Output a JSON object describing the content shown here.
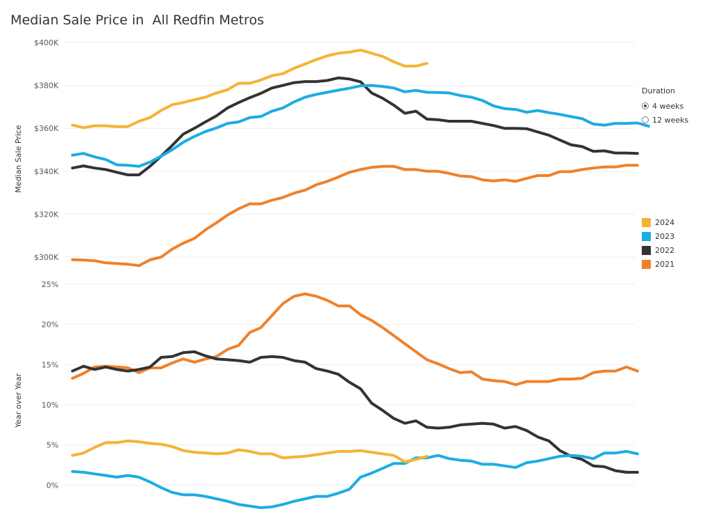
{
  "title": "Median Sale Price in  All Redfin Metros",
  "duration_filter": {
    "title": "Duration",
    "options": [
      {
        "label": "4 weeks",
        "checked": true
      },
      {
        "label": "12 weeks",
        "checked": false
      }
    ]
  },
  "chart_data": [
    {
      "type": "line",
      "ylabel": "Median Sale Price",
      "ylim": [
        300000,
        400000
      ],
      "yticks": [
        300000,
        320000,
        340000,
        360000,
        380000,
        400000
      ],
      "ytick_labels": [
        "$300K",
        "$320K",
        "$340K",
        "$360K",
        "$380K",
        "$400K"
      ],
      "grid": true,
      "legend_position": "right",
      "series": [
        {
          "name": "2024",
          "color": "#F5B335",
          "values": [
            361.5,
            360.3,
            361.2,
            361.2,
            360.8,
            360.8,
            363.3,
            365.0,
            368.3,
            371.0,
            372.0,
            373.3,
            374.5,
            376.5,
            378.0,
            381.0,
            381.0,
            382.5,
            384.5,
            385.5,
            388.0,
            390.0,
            392.0,
            393.8,
            395.0,
            395.5,
            396.5,
            395.0,
            393.5,
            391.0,
            389.0,
            389.0,
            390.3
          ]
        },
        {
          "name": "2023",
          "color": "#1BADE3",
          "values": [
            347.5,
            348.3,
            346.7,
            345.5,
            343.0,
            342.8,
            342.3,
            344.3,
            347.0,
            350.0,
            353.5,
            356.2,
            358.5,
            360.2,
            362.3,
            363.0,
            365.0,
            365.5,
            368.0,
            369.5,
            372.3,
            374.5,
            375.8,
            376.8,
            377.8,
            378.7,
            379.8,
            380.0,
            379.5,
            378.8,
            377.0,
            377.7,
            376.8,
            376.7,
            376.5,
            375.3,
            374.5,
            373.0,
            370.5,
            369.2,
            368.8,
            367.5,
            368.3,
            367.3,
            366.5,
            365.5,
            364.5,
            362.0,
            361.5,
            362.3,
            362.3,
            362.5,
            361.0
          ]
        },
        {
          "name": "2022",
          "color": "#333333",
          "values": [
            341.5,
            342.5,
            341.5,
            340.8,
            339.5,
            338.3,
            338.3,
            342.3,
            347.0,
            352.0,
            357.3,
            360.0,
            363.0,
            365.8,
            369.5,
            372.0,
            374.3,
            376.3,
            378.8,
            380.0,
            381.3,
            381.8,
            381.8,
            382.3,
            383.5,
            383.0,
            381.7,
            376.5,
            374.0,
            370.8,
            367.0,
            368.0,
            364.3,
            364.0,
            363.3,
            363.3,
            363.3,
            362.3,
            361.3,
            360.0,
            360.0,
            359.8,
            358.3,
            356.8,
            354.5,
            352.3,
            351.5,
            349.3,
            349.5,
            348.5,
            348.5,
            348.3
          ]
        },
        {
          "name": "2021",
          "color": "#F0812A",
          "values": [
            298.8,
            298.6,
            298.3,
            297.3,
            297.0,
            296.7,
            296.0,
            298.7,
            300.0,
            303.7,
            306.5,
            308.7,
            312.7,
            316.0,
            319.6,
            322.5,
            324.8,
            324.8,
            326.5,
            327.8,
            329.8,
            331.2,
            333.7,
            335.3,
            337.3,
            339.5,
            340.8,
            341.8,
            342.3,
            342.3,
            340.8,
            340.8,
            340.0,
            340.0,
            339.0,
            337.8,
            337.5,
            336.0,
            335.5,
            336.0,
            335.3,
            336.7,
            338.0,
            338.0,
            339.8,
            339.8,
            340.8,
            341.5,
            342.0,
            342.0,
            342.8,
            342.8
          ]
        }
      ]
    },
    {
      "type": "line",
      "ylabel": "Year over Year",
      "ylim": [
        -3,
        25
      ],
      "yticks": [
        0,
        5,
        10,
        15,
        20,
        25
      ],
      "ytick_labels": [
        "0%",
        "5%",
        "10%",
        "15%",
        "20%",
        "25%"
      ],
      "grid": true,
      "legend_position": "right",
      "series": [
        {
          "name": "2024",
          "color": "#F5B335",
          "values": [
            3.7,
            4.0,
            4.7,
            5.3,
            5.3,
            5.5,
            5.4,
            5.2,
            5.1,
            4.8,
            4.3,
            4.1,
            4.0,
            3.9,
            4.0,
            4.4,
            4.2,
            3.9,
            3.9,
            3.4,
            3.5,
            3.6,
            3.8,
            4.0,
            4.2,
            4.2,
            4.3,
            4.1,
            3.9,
            3.7,
            2.9,
            3.2,
            3.6
          ]
        },
        {
          "name": "2023",
          "color": "#1BADE3",
          "values": [
            1.7,
            1.6,
            1.4,
            1.2,
            1.0,
            1.2,
            1.0,
            0.4,
            -0.3,
            -0.9,
            -1.2,
            -1.2,
            -1.4,
            -1.7,
            -2.0,
            -2.4,
            -2.6,
            -2.8,
            -2.7,
            -2.4,
            -2.0,
            -1.7,
            -1.4,
            -1.4,
            -1.0,
            -0.5,
            1.0,
            1.5,
            2.1,
            2.7,
            2.7,
            3.4,
            3.4,
            3.7,
            3.3,
            3.1,
            3.0,
            2.6,
            2.6,
            2.4,
            2.2,
            2.8,
            3.0,
            3.3,
            3.6,
            3.7,
            3.6,
            3.3,
            4.0,
            4.0,
            4.2,
            3.9
          ]
        },
        {
          "name": "2022",
          "color": "#333333",
          "values": [
            14.2,
            14.8,
            14.4,
            14.7,
            14.4,
            14.2,
            14.4,
            14.7,
            15.9,
            16.0,
            16.5,
            16.6,
            16.1,
            15.7,
            15.6,
            15.5,
            15.3,
            15.9,
            16.0,
            15.9,
            15.5,
            15.3,
            14.5,
            14.2,
            13.8,
            12.8,
            12.0,
            10.2,
            9.3,
            8.3,
            7.7,
            8.0,
            7.2,
            7.1,
            7.2,
            7.5,
            7.6,
            7.7,
            7.6,
            7.1,
            7.3,
            6.8,
            6.0,
            5.5,
            4.3,
            3.6,
            3.2,
            2.4,
            2.3,
            1.8,
            1.6,
            1.6
          ]
        },
        {
          "name": "2021",
          "color": "#F0812A",
          "values": [
            13.3,
            13.9,
            14.7,
            14.8,
            14.7,
            14.6,
            14.0,
            14.6,
            14.6,
            15.2,
            15.7,
            15.3,
            15.7,
            16.0,
            16.9,
            17.4,
            19.0,
            19.6,
            21.1,
            22.6,
            23.5,
            23.8,
            23.5,
            23.0,
            22.3,
            22.3,
            21.2,
            20.5,
            19.6,
            18.6,
            17.6,
            16.6,
            15.6,
            15.1,
            14.5,
            14.0,
            14.1,
            13.2,
            13.0,
            12.9,
            12.5,
            12.9,
            12.9,
            12.9,
            13.2,
            13.2,
            13.3,
            14.0,
            14.2,
            14.2,
            14.7,
            14.2
          ]
        }
      ]
    }
  ]
}
